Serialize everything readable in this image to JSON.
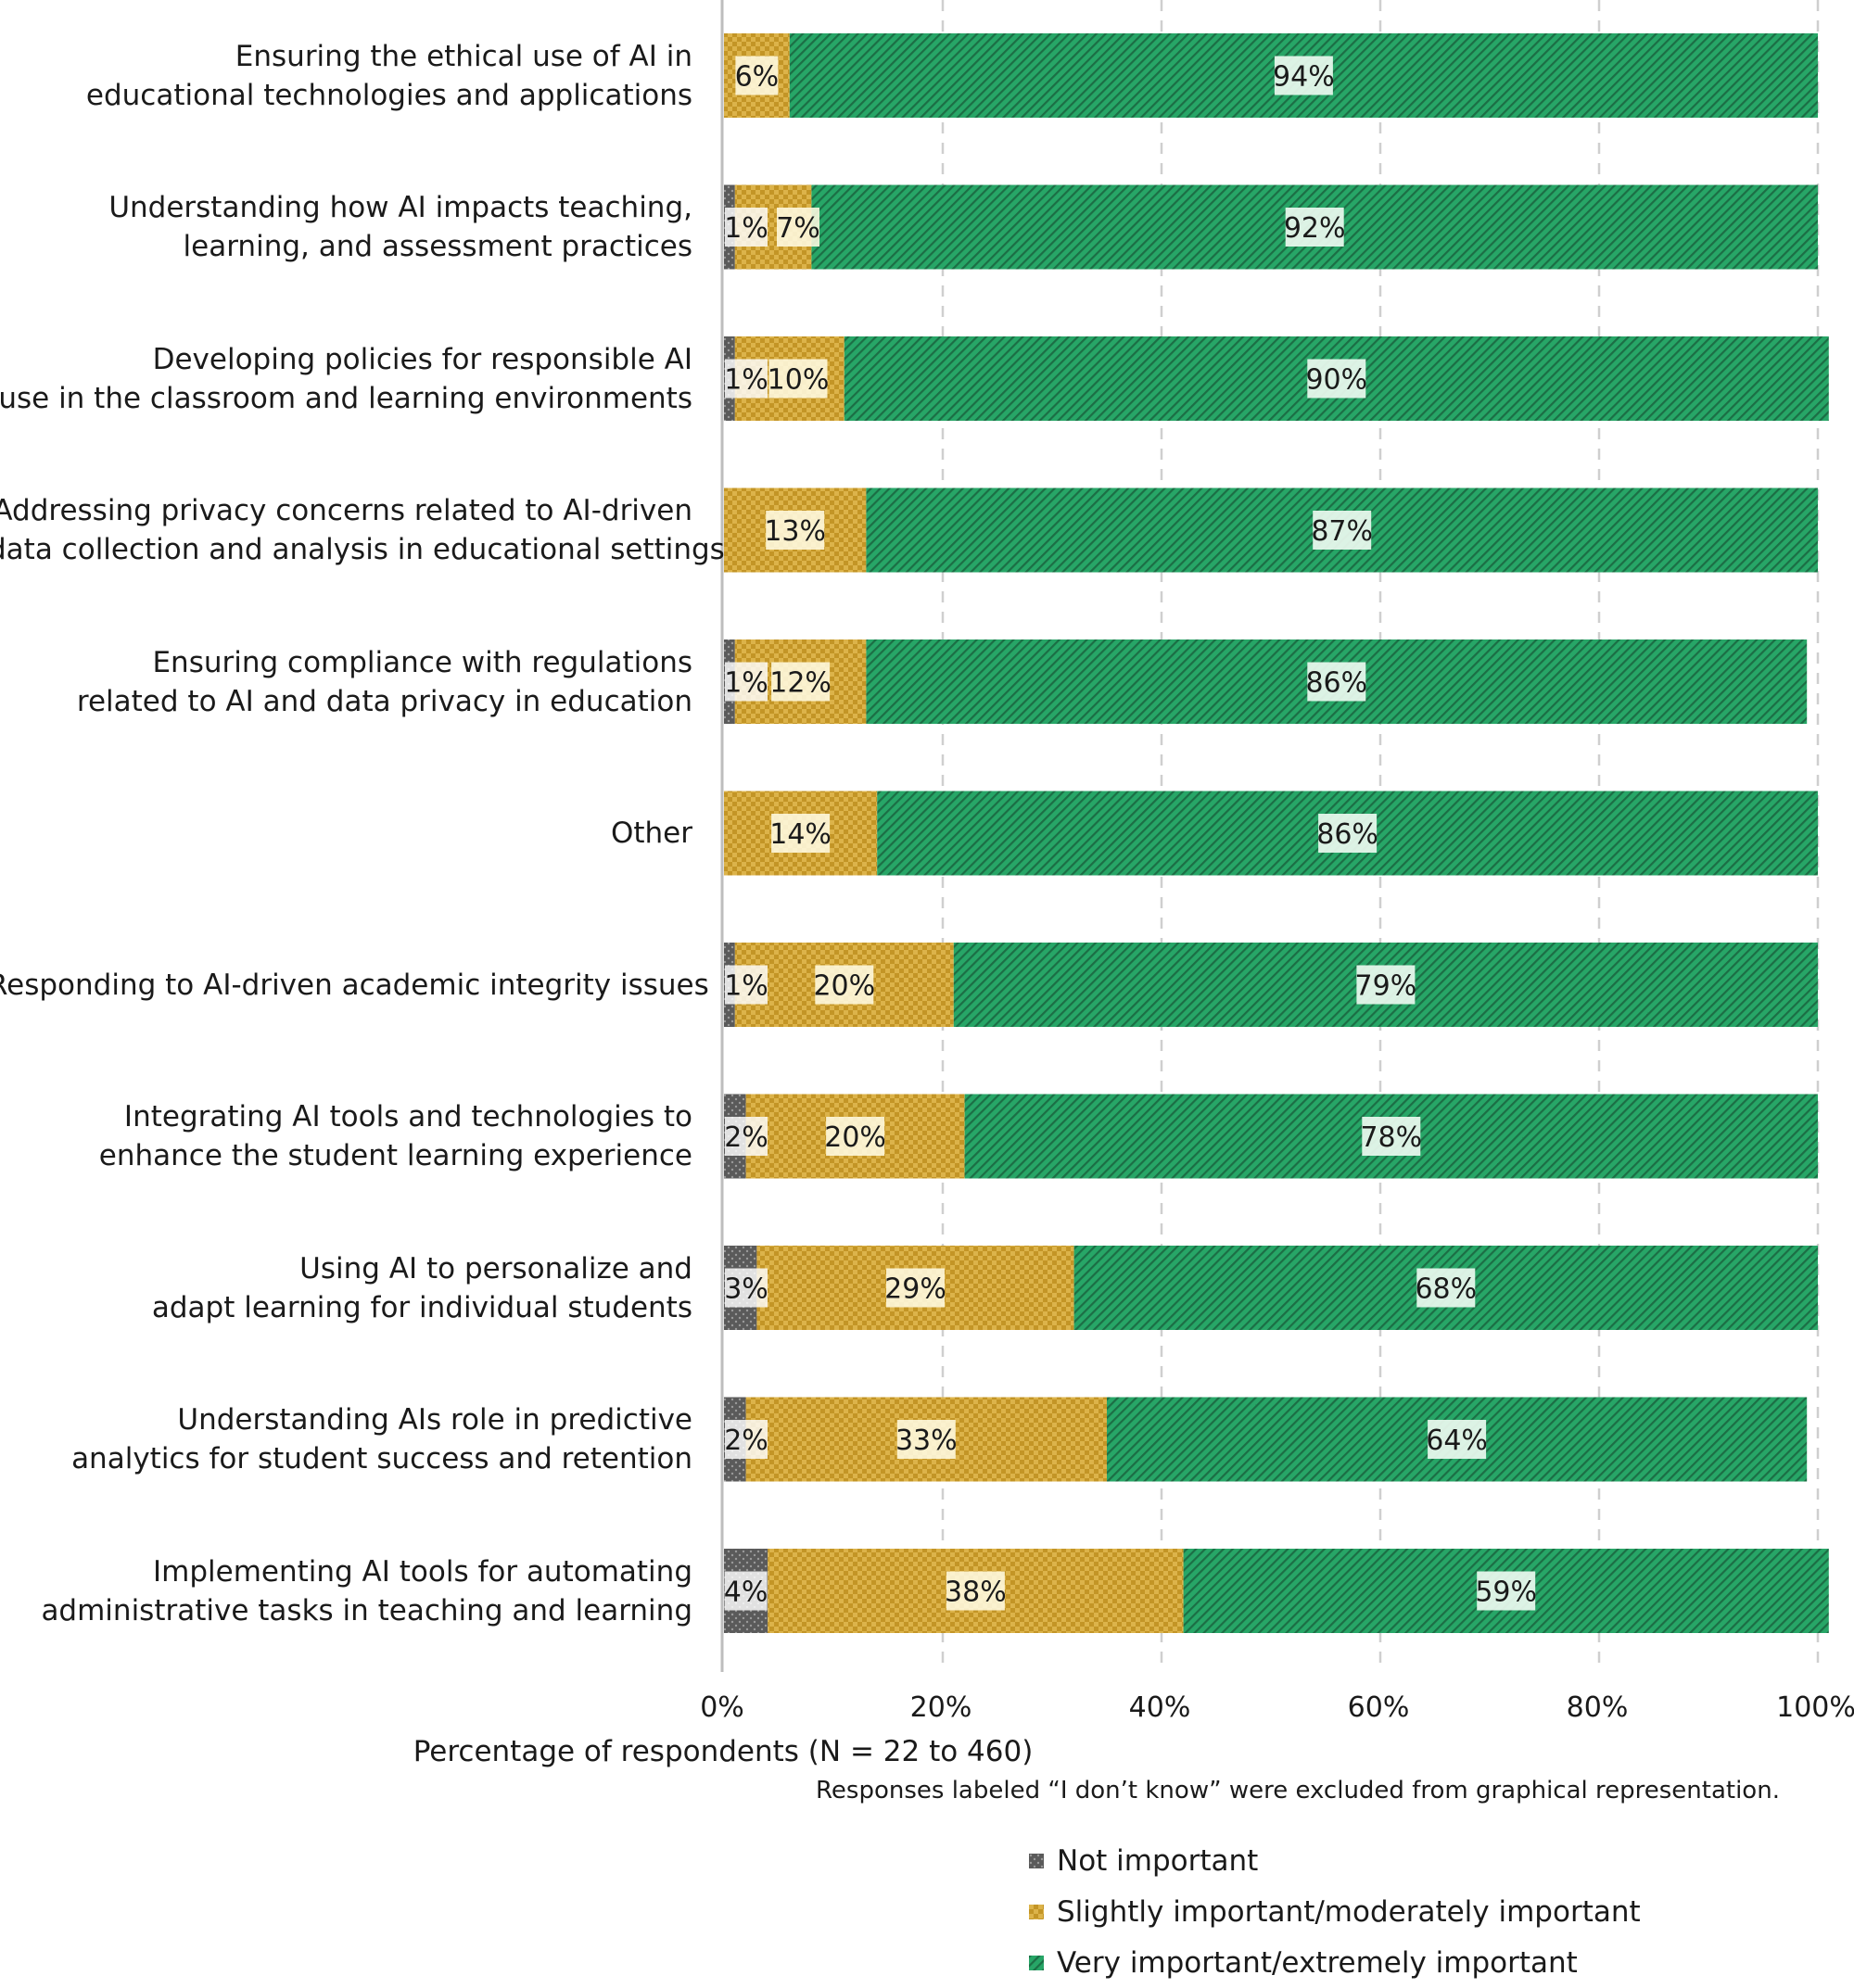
{
  "chart_data": {
    "type": "bar",
    "orientation": "horizontal",
    "stacked": true,
    "categories": [
      [
        "Ensuring the ethical use of AI in",
        "educational technologies and applications"
      ],
      [
        "Understanding how AI impacts teaching,",
        "learning, and assessment practices"
      ],
      [
        "Developing policies for responsible AI",
        "use in the classroom and learning environments"
      ],
      [
        "Addressing privacy concerns related to AI-driven",
        "data collection and analysis in educational settings"
      ],
      [
        "Ensuring compliance with regulations",
        "related to AI and data privacy in education"
      ],
      [
        "Other"
      ],
      [
        "Responding to AI-driven academic integrity issues"
      ],
      [
        "Integrating AI tools and technologies to",
        "enhance the student learning experience"
      ],
      [
        "Using AI to personalize and",
        "adapt learning for individual students"
      ],
      [
        "Understanding AIs role in predictive",
        "analytics for student success and retention"
      ],
      [
        "Implementing AI tools for automating",
        "administrative tasks in teaching and learning"
      ]
    ],
    "series": [
      {
        "name": "Not important",
        "color": "#5c5c5c",
        "values": [
          0,
          1,
          1,
          0,
          1,
          0,
          1,
          2,
          3,
          2,
          4
        ],
        "labels": [
          "",
          "1%",
          "1%",
          "",
          "1%",
          "",
          "1%",
          "2%",
          "3%",
          "2%",
          "4%"
        ]
      },
      {
        "name": "Slightly important/moderately important",
        "color": "#c9992a",
        "values": [
          6,
          7,
          10,
          13,
          12,
          14,
          20,
          20,
          29,
          33,
          38
        ],
        "labels": [
          "6%",
          "7%",
          "10%",
          "13%",
          "12%",
          "14%",
          "20%",
          "20%",
          "29%",
          "33%",
          "38%"
        ]
      },
      {
        "name": "Very important/extremely important",
        "color": "#27a667",
        "values": [
          94,
          92,
          90,
          87,
          86,
          86,
          79,
          78,
          68,
          64,
          59
        ],
        "labels": [
          "94%",
          "92%",
          "90%",
          "87%",
          "86%",
          "86%",
          "79%",
          "78%",
          "68%",
          "64%",
          "59%"
        ]
      }
    ],
    "x_ticks": [
      "0%",
      "20%",
      "40%",
      "60%",
      "80%",
      "100%"
    ],
    "xlim": [
      0,
      100
    ],
    "xlabel": "Percentage of respondents (N = 22 to 460)",
    "note": "Responses labeled “I don’t know” were excluded from graphical representation.",
    "grid": "vertical dashed",
    "legend_position": "bottom"
  }
}
